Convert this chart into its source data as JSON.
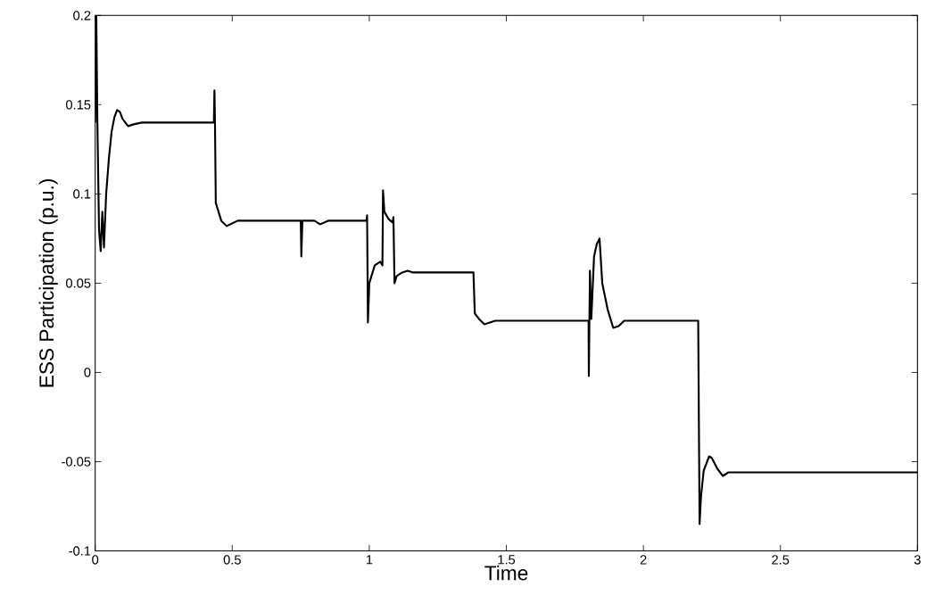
{
  "chart_data": {
    "type": "line",
    "xlabel": "Time",
    "ylabel": "ESS Participation (p.u.)",
    "xlim": [
      0,
      3
    ],
    "ylim": [
      -0.1,
      0.2
    ],
    "xticks": [
      0,
      0.5,
      1,
      1.5,
      2,
      2.5,
      3
    ],
    "yticks": [
      -0.1,
      -0.05,
      0,
      0.05,
      0.1,
      0.15,
      0.2
    ],
    "grid": false,
    "marker": "none",
    "line_style": "solid",
    "series": [
      {
        "color": "#000000",
        "x": [
          0,
          0.004,
          0.008,
          0.014,
          0.02,
          0.026,
          0.032,
          0.04,
          0.05,
          0.06,
          0.07,
          0.08,
          0.09,
          0.1,
          0.12,
          0.14,
          0.17,
          0.433,
          0.435,
          0.437,
          0.44,
          0.46,
          0.48,
          0.52,
          0.75,
          0.752,
          0.756,
          0.8,
          0.82,
          0.85,
          0.99,
          0.992,
          0.995,
          1.0,
          1.02,
          1.04,
          1.048,
          1.05,
          1.055,
          1.07,
          1.085,
          1.088,
          1.092,
          1.1,
          1.12,
          1.14,
          1.16,
          1.38,
          1.385,
          1.4,
          1.42,
          1.46,
          1.8,
          1.801,
          1.805,
          1.81,
          1.82,
          1.83,
          1.84,
          1.85,
          1.87,
          1.89,
          1.91,
          1.93,
          2.2,
          2.205,
          2.21,
          2.22,
          2.24,
          2.25,
          2.27,
          2.29,
          2.31,
          2.33,
          3
        ],
        "values": [
          0.14,
          0.2,
          0.14,
          0.08,
          0.068,
          0.09,
          0.07,
          0.1,
          0.12,
          0.135,
          0.143,
          0.147,
          0.146,
          0.142,
          0.138,
          0.139,
          0.14,
          0.14,
          0.158,
          0.14,
          0.095,
          0.085,
          0.082,
          0.085,
          0.085,
          0.065,
          0.085,
          0.085,
          0.083,
          0.085,
          0.085,
          0.088,
          0.028,
          0.05,
          0.06,
          0.062,
          0.06,
          0.102,
          0.09,
          0.086,
          0.084,
          0.087,
          0.05,
          0.054,
          0.056,
          0.057,
          0.056,
          0.056,
          0.033,
          0.03,
          0.027,
          0.029,
          0.029,
          -0.002,
          0.057,
          0.03,
          0.065,
          0.072,
          0.075,
          0.05,
          0.035,
          0.025,
          0.026,
          0.029,
          0.029,
          -0.085,
          -0.07,
          -0.055,
          -0.047,
          -0.048,
          -0.054,
          -0.058,
          -0.056,
          -0.056,
          -0.056
        ]
      }
    ]
  }
}
